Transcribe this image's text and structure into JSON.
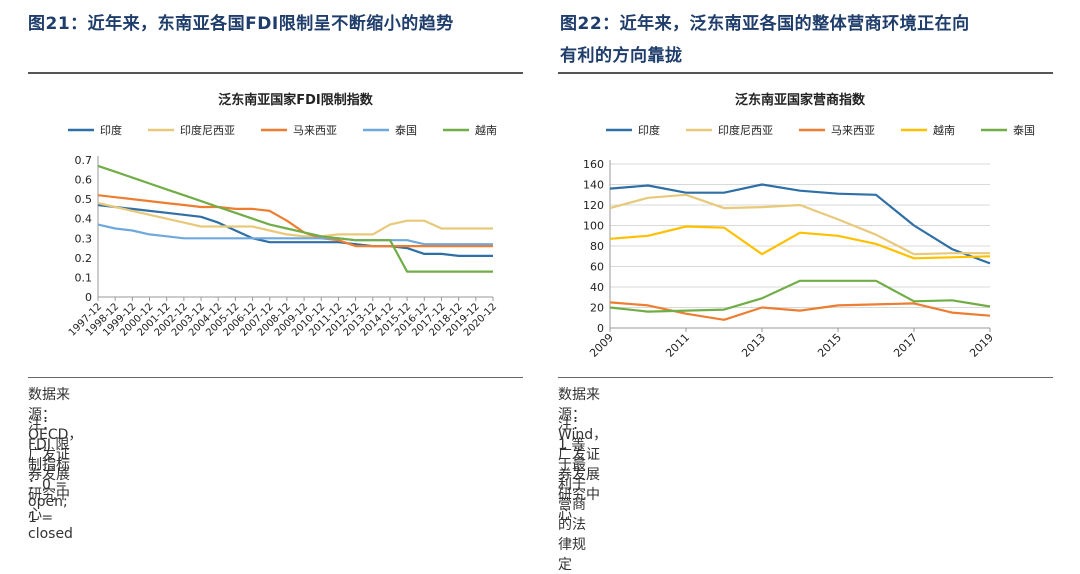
{
  "left": {
    "figure_title": "图21：近年来，东南亚各国FDI限制呈不断缩小的趋势",
    "source": "数据来源：OECD，广发证券发展研究中心",
    "footnote": "注：FDI 限制指标 ：0 = open; 1 = closed"
  },
  "right": {
    "figure_title_line1": "图22：近年来，泛东南亚各国的整体营商环境正在向",
    "figure_title_line2": "有利的方向靠拢",
    "source": "数据来源：Wind，广发证券发展研究中心",
    "footnote": "注：1 等于最利于营商的法律规定"
  },
  "chart_data": [
    {
      "type": "line",
      "title": "泛东南亚国家FDI限制指数",
      "xlabel": "",
      "ylabel": "",
      "x": [
        "1997-12",
        "1998-12",
        "1999-12",
        "2000-12",
        "2001-12",
        "2002-12",
        "2003-12",
        "2004-12",
        "2005-12",
        "2006-12",
        "2007-12",
        "2008-12",
        "2009-12",
        "2010-12",
        "2011-12",
        "2012-12",
        "2013-12",
        "2014-12",
        "2015-12",
        "2016-12",
        "2017-12",
        "2018-12",
        "2019-12",
        "2020-12"
      ],
      "ylim": [
        0,
        0.7
      ],
      "yticks": [
        0,
        0.1,
        0.2,
        0.3,
        0.4,
        0.5,
        0.6,
        0.7
      ],
      "legend": "top",
      "grid": false,
      "series": [
        {
          "name": "印度",
          "color": "#2e6fa5",
          "values": [
            0.47,
            0.46,
            0.45,
            0.44,
            0.43,
            0.42,
            0.41,
            0.38,
            0.34,
            0.3,
            0.28,
            0.28,
            0.28,
            0.28,
            0.28,
            0.27,
            0.26,
            0.26,
            0.25,
            0.22,
            0.22,
            0.21,
            0.21,
            0.21
          ]
        },
        {
          "name": "印度尼西亚",
          "color": "#e8c97a",
          "values": [
            0.48,
            0.46,
            0.44,
            0.42,
            0.4,
            0.38,
            0.36,
            0.36,
            0.36,
            0.36,
            0.34,
            0.32,
            0.31,
            0.31,
            0.32,
            0.32,
            0.32,
            0.37,
            0.39,
            0.39,
            0.35,
            0.35,
            0.35,
            0.35
          ]
        },
        {
          "name": "马来西亚",
          "color": "#ed7d31",
          "values": [
            0.52,
            0.51,
            0.5,
            0.49,
            0.48,
            0.47,
            0.46,
            0.46,
            0.45,
            0.45,
            0.44,
            0.39,
            0.33,
            0.3,
            0.29,
            0.26,
            0.26,
            0.26,
            0.26,
            0.26,
            0.26,
            0.26,
            0.26,
            0.26
          ]
        },
        {
          "name": "泰国",
          "color": "#6fa8dc",
          "values": [
            0.37,
            0.35,
            0.34,
            0.32,
            0.31,
            0.3,
            0.3,
            0.3,
            0.3,
            0.3,
            0.3,
            0.3,
            0.3,
            0.3,
            0.3,
            0.29,
            0.29,
            0.29,
            0.29,
            0.27,
            0.27,
            0.27,
            0.27,
            0.27
          ]
        },
        {
          "name": "越南",
          "color": "#70ad47",
          "values": [
            0.67,
            0.64,
            0.61,
            0.58,
            0.55,
            0.52,
            0.49,
            0.46,
            0.43,
            0.4,
            0.37,
            0.35,
            0.33,
            0.31,
            0.3,
            0.29,
            0.29,
            0.29,
            0.13,
            0.13,
            0.13,
            0.13,
            0.13,
            0.13
          ]
        }
      ]
    },
    {
      "type": "line",
      "title": "泛东南亚国家营商指数",
      "xlabel": "",
      "ylabel": "",
      "x": [
        2009,
        2010,
        2011,
        2012,
        2013,
        2014,
        2015,
        2016,
        2017,
        2018,
        2019
      ],
      "xticks": [
        2009,
        2011,
        2013,
        2015,
        2017,
        2019
      ],
      "ylim": [
        0,
        160
      ],
      "yticks": [
        0,
        20,
        40,
        60,
        80,
        100,
        120,
        140,
        160
      ],
      "legend": "top",
      "grid": true,
      "series": [
        {
          "name": "印度",
          "color": "#2e6fa5",
          "values": [
            136,
            139,
            132,
            132,
            140,
            134,
            131,
            130,
            100,
            77,
            63
          ]
        },
        {
          "name": "印度尼西亚",
          "color": "#e8c97a",
          "values": [
            117,
            127,
            130,
            117,
            118,
            120,
            106,
            91,
            72,
            73,
            73
          ]
        },
        {
          "name": "马来西亚",
          "color": "#ed7d31",
          "values": [
            25,
            22,
            14,
            8,
            20,
            17,
            22,
            23,
            24,
            15,
            12
          ]
        },
        {
          "name": "越南",
          "color": "#ffc000",
          "values": [
            87,
            90,
            99,
            98,
            72,
            93,
            90,
            82,
            68,
            69,
            70
          ]
        },
        {
          "name": "泰国",
          "color": "#70ad47",
          "values": [
            20,
            16,
            17,
            18,
            29,
            46,
            46,
            46,
            26,
            27,
            21
          ]
        }
      ]
    }
  ]
}
